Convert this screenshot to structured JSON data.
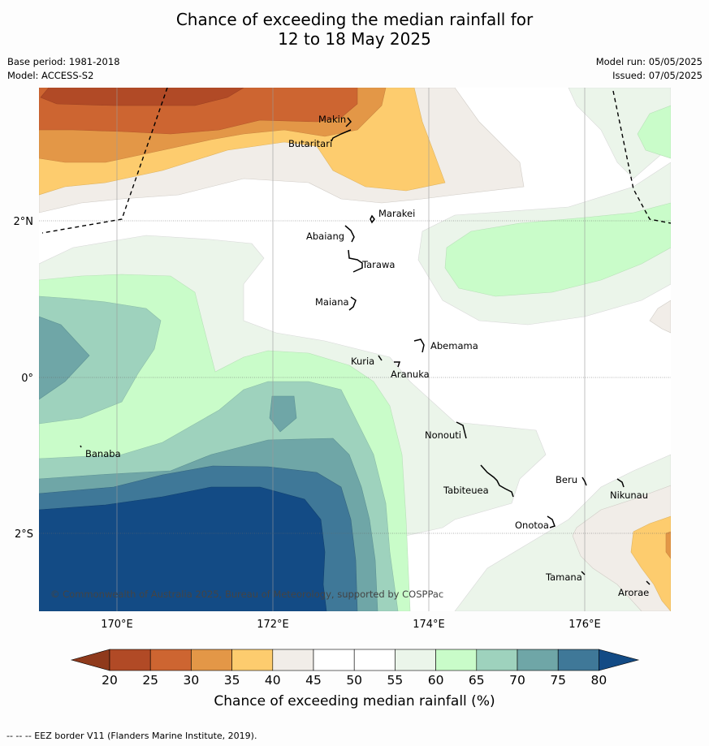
{
  "header": {
    "title_line1": "Chance of exceeding the median rainfall for",
    "title_line2": "12 to 18 May 2025",
    "base_period": "Base period: 1981-2018",
    "model": "Model: ACCESS-S2",
    "model_run": "Model run: 05/05/2025",
    "issued": "Issued: 07/05/2025"
  },
  "map": {
    "lon_ticks": [
      "170°E",
      "172°E",
      "174°E",
      "176°E"
    ],
    "lat_ticks": [
      "2°N",
      "0°",
      "2°S"
    ],
    "copyright": "© Commonwealth of Australia 2025, Bureau of Meteorology, supported by COSPPac",
    "places": [
      "Makin",
      "Butaritari",
      "Marakei",
      "Abaiang",
      "Tarawa",
      "Maiana",
      "Abemama",
      "Kuria",
      "Aranuka",
      "Banaba",
      "Nonouti",
      "Tabiteuea",
      "Beru",
      "Nikunau",
      "Onotoa",
      "Tamana",
      "Arorae"
    ],
    "colors": {
      "c20": "#b14a26",
      "c25": "#cd6531",
      "c30": "#e39747",
      "c35": "#fdcc6e",
      "c40": "#f1ede8",
      "c45": "#ffffff",
      "c55": "#ebf5ea",
      "c60": "#c9fcc9",
      "c65": "#9ed2bd",
      "c70": "#6fa6a7",
      "c75": "#3f7898",
      "c80": "#134b85"
    }
  },
  "colorbar": {
    "ticks": [
      "20",
      "25",
      "30",
      "35",
      "40",
      "45",
      "50",
      "55",
      "60",
      "65",
      "70",
      "75",
      "80"
    ],
    "label": "Chance of exceeding median rainfall (%)"
  },
  "footnote": "--  --  -- EEZ border V11 (Flanders Marine Institute, 2019)."
}
